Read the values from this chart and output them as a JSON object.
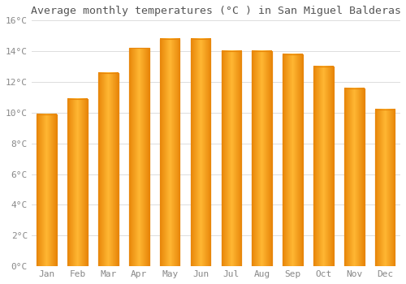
{
  "title": "Average monthly temperatures (°C ) in San Miguel Balderas",
  "months": [
    "Jan",
    "Feb",
    "Mar",
    "Apr",
    "May",
    "Jun",
    "Jul",
    "Aug",
    "Sep",
    "Oct",
    "Nov",
    "Dec"
  ],
  "values": [
    9.9,
    10.9,
    12.6,
    14.2,
    14.8,
    14.8,
    14.0,
    14.0,
    13.8,
    13.0,
    11.6,
    10.2
  ],
  "bar_color_center": "#FFB733",
  "bar_color_edge": "#E8860A",
  "ylim": [
    0,
    16
  ],
  "ytick_step": 2,
  "background_color": "#FFFFFF",
  "plot_bg_color": "#FFFFFF",
  "grid_color": "#DDDDDD",
  "title_fontsize": 9.5,
  "tick_fontsize": 8,
  "tick_color": "#888888",
  "font_family": "monospace"
}
